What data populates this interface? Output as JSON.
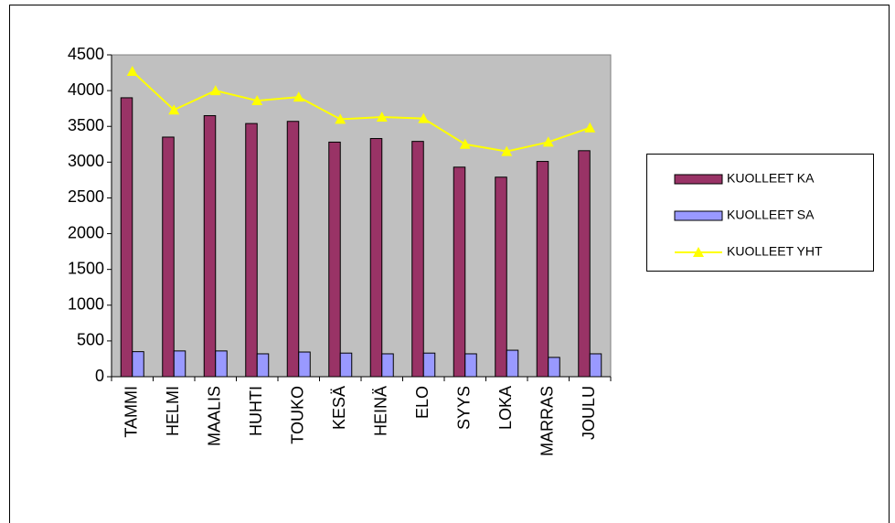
{
  "chart_data": {
    "type": "bar",
    "categories": [
      "TAMMI",
      "HELMI",
      "MAALIS",
      "HUHTI",
      "TOUKO",
      "KESÄ",
      "HEINÄ",
      "ELO",
      "SYYS",
      "LOKA",
      "MARRAS",
      "JOULU"
    ],
    "series": [
      {
        "name": "KUOLLEET KA",
        "color": "#993366",
        "type": "bar",
        "values": [
          3900,
          3350,
          3650,
          3540,
          3570,
          3280,
          3330,
          3290,
          2930,
          2790,
          3010,
          3160
        ]
      },
      {
        "name": "KUOLLEET SA",
        "color": "#9999ff",
        "type": "bar",
        "values": [
          350,
          360,
          360,
          320,
          345,
          330,
          320,
          330,
          320,
          370,
          270,
          320
        ]
      },
      {
        "name": "KUOLLEET YHT",
        "color": "#ffff00",
        "type": "line",
        "values": [
          4270,
          3730,
          4000,
          3860,
          3910,
          3600,
          3630,
          3610,
          3250,
          3150,
          3280,
          3480
        ]
      }
    ],
    "ylim": [
      0,
      4500
    ],
    "yticks": [
      0,
      500,
      1000,
      1500,
      2000,
      2500,
      3000,
      3500,
      4000,
      4500
    ],
    "grid": false,
    "plot_background": "#c0c0c0",
    "legend": "right"
  }
}
